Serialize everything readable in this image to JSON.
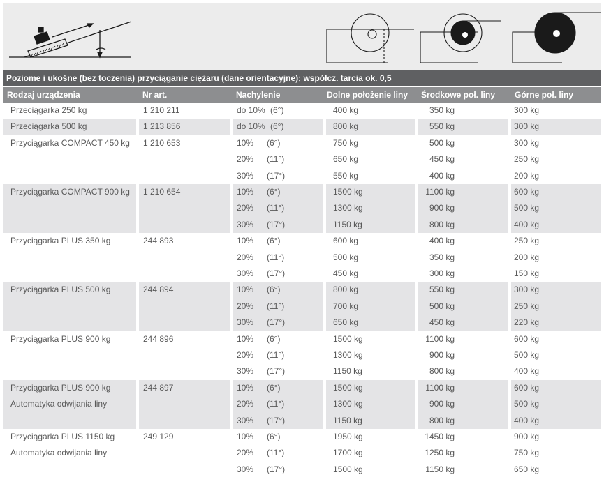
{
  "table": {
    "title": "Poziome i ukośne (bez toczenia) przyciąganie ciężaru (dane orientacyjne); współcz. tarcia ok. 0,5",
    "columns": [
      "Rodzaj urządzenia",
      "Nr art.",
      "Nachylenie",
      "Dolne położenie liny",
      "Środkowe poł. liny",
      "Górne poł. liny"
    ],
    "groups": [
      {
        "name": [
          "Przeciągarka 250 kg"
        ],
        "art": "1 210 211",
        "rows": [
          {
            "pct": "do 10%",
            "deg": "(6°)",
            "low": "400 kg",
            "mid": "350 kg",
            "high": "300 kg"
          }
        ]
      },
      {
        "name": [
          "Przeciągarka 500 kg"
        ],
        "art": "1 213 856",
        "rows": [
          {
            "pct": "do 10%",
            "deg": "(6°)",
            "low": "800 kg",
            "mid": "550 kg",
            "high": "300 kg"
          }
        ]
      },
      {
        "name": [
          "Przyciągarka COMPACT 450 kg"
        ],
        "art": "1 210 653",
        "rows": [
          {
            "pct": "10%",
            "deg": "(6°)",
            "low": "750 kg",
            "mid": "500 kg",
            "high": "300 kg"
          },
          {
            "pct": "20%",
            "deg": "(11°)",
            "low": "650 kg",
            "mid": "450 kg",
            "high": "250 kg"
          },
          {
            "pct": "30%",
            "deg": "(17°)",
            "low": "550 kg",
            "mid": "400 kg",
            "high": "200 kg"
          }
        ]
      },
      {
        "name": [
          "Przyciągarka COMPACT 900 kg"
        ],
        "art": "1 210 654",
        "rows": [
          {
            "pct": "10%",
            "deg": "(6°)",
            "low": "1500 kg",
            "mid": "1100 kg",
            "high": "600 kg"
          },
          {
            "pct": "20%",
            "deg": "(11°)",
            "low": "1300 kg",
            "mid": "900 kg",
            "high": "500 kg"
          },
          {
            "pct": "30%",
            "deg": "(17°)",
            "low": "1150 kg",
            "mid": "800 kg",
            "high": "400 kg"
          }
        ]
      },
      {
        "name": [
          "Przyciągarka PLUS 350 kg"
        ],
        "art": "244 893",
        "rows": [
          {
            "pct": "10%",
            "deg": "(6°)",
            "low": "600 kg",
            "mid": "400 kg",
            "high": "250 kg"
          },
          {
            "pct": "20%",
            "deg": "(11°)",
            "low": "500 kg",
            "mid": "350 kg",
            "high": "200 kg"
          },
          {
            "pct": "30%",
            "deg": "(17°)",
            "low": "450 kg",
            "mid": "300 kg",
            "high": "150 kg"
          }
        ]
      },
      {
        "name": [
          "Przyciągarka PLUS 500 kg"
        ],
        "art": "244 894",
        "rows": [
          {
            "pct": "10%",
            "deg": "(6°)",
            "low": "800 kg",
            "mid": "550 kg",
            "high": "300 kg"
          },
          {
            "pct": "20%",
            "deg": "(11°)",
            "low": "700 kg",
            "mid": "500 kg",
            "high": "250 kg"
          },
          {
            "pct": "30%",
            "deg": "(17°)",
            "low": "650 kg",
            "mid": "450 kg",
            "high": "220 kg"
          }
        ]
      },
      {
        "name": [
          "Przyciągarka PLUS 900 kg"
        ],
        "art": "244 896",
        "rows": [
          {
            "pct": "10%",
            "deg": "(6°)",
            "low": "1500 kg",
            "mid": "1100 kg",
            "high": "600 kg"
          },
          {
            "pct": "20%",
            "deg": "(11°)",
            "low": "1300 kg",
            "mid": "900 kg",
            "high": "500 kg"
          },
          {
            "pct": "30%",
            "deg": "(17°)",
            "low": "1150 kg",
            "mid": "800 kg",
            "high": "400 kg"
          }
        ]
      },
      {
        "name": [
          "Przyciągarka PLUS 900 kg",
          "Automatyka odwijania liny"
        ],
        "art": "244 897",
        "rows": [
          {
            "pct": "10%",
            "deg": "(6°)",
            "low": "1500 kg",
            "mid": "1100 kg",
            "high": "600 kg"
          },
          {
            "pct": "20%",
            "deg": "(11°)",
            "low": "1300 kg",
            "mid": "900 kg",
            "high": "500 kg"
          },
          {
            "pct": "30%",
            "deg": "(17°)",
            "low": "1150 kg",
            "mid": "800 kg",
            "high": "400 kg"
          }
        ]
      },
      {
        "name": [
          "Przyciągarka PLUS 1150 kg",
          "Automatyka odwijania liny"
        ],
        "art": "249 129",
        "rows": [
          {
            "pct": "10%",
            "deg": "(6°)",
            "low": "1950 kg",
            "mid": "1450 kg",
            "high": "900 kg"
          },
          {
            "pct": "20%",
            "deg": "(11°)",
            "low": "1700 kg",
            "mid": "1250 kg",
            "high": "750 kg"
          },
          {
            "pct": "30%",
            "deg": "(17°)",
            "low": "1500 kg",
            "mid": "1150 kg",
            "high": "650 kg"
          }
        ]
      }
    ]
  },
  "colors": {
    "title_bar": "#5f6062",
    "header_bar": "#8d8e90",
    "row_shaded": "#e4e4e6",
    "row_plain": "#ffffff",
    "illustration_bg": "#ececec"
  }
}
